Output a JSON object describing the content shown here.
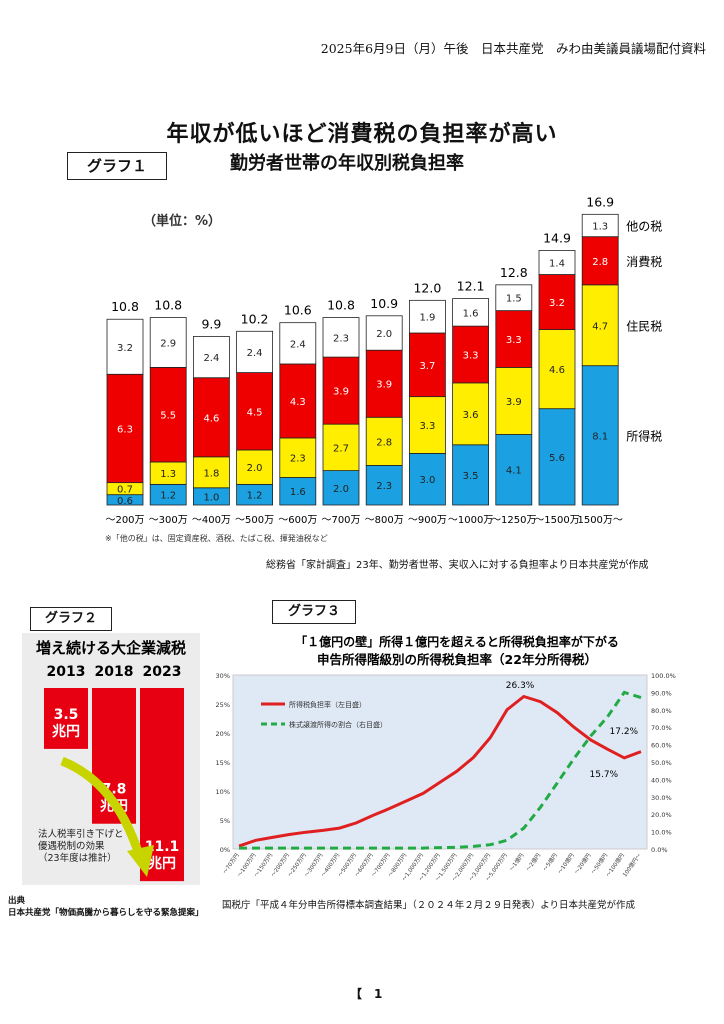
{
  "header": {
    "line": "2025年6月9日（月）午後　日本共産党　みわ由美議員議場配付資料"
  },
  "main_title": "年収が低いほど消費税の負担率が高い",
  "graph1": {
    "tag": "グラフ１",
    "title": "勤労者世帯の年収別税負担率",
    "unit": "（単位：%）",
    "footnote": "※「他の税」は、固定資産税、酒税、たばこ税、揮発油税など",
    "source": "総務省「家計調査」23年、勤労者世帯、実収入に対する負担率より日本共産党が作成"
  },
  "graph2": {
    "tag": "グラフ２",
    "source_label": "出典",
    "source_text": "日本共産党「物価高騰から暮らしを守る緊急提案」"
  },
  "graph3": {
    "tag": "グラフ３",
    "source": "国税庁「平成４年分申告所得標本調査結果」（２０２４年２月２９日発表）より日本共産党が作成"
  },
  "chart_data": [
    {
      "type": "bar",
      "stacked": true,
      "title": "勤労者世帯の年収別税負担率",
      "ylabel": "（単位：%）",
      "categories": [
        "～200万",
        "～300万",
        "～400万",
        "～500万",
        "～600万",
        "～700万",
        "～800万",
        "～900万",
        "～1000万",
        "～1250万",
        "～1500万",
        "1500万～"
      ],
      "totals": [
        "10.8",
        "10.8",
        "9.9",
        "10.2",
        "10.6",
        "10.8",
        "10.9",
        "12.0",
        "12.1",
        "12.8",
        "14.9",
        "16.9"
      ],
      "series": [
        {
          "name": "所得税",
          "color": "#1ba1e2",
          "values": [
            0.6,
            1.2,
            1.0,
            1.2,
            1.6,
            2.0,
            2.3,
            3.0,
            3.5,
            4.1,
            5.6,
            8.1
          ]
        },
        {
          "name": "住民税",
          "color": "#ffee00",
          "values": [
            0.7,
            1.3,
            1.8,
            2.0,
            2.3,
            2.7,
            2.8,
            3.3,
            3.6,
            3.9,
            4.6,
            4.7
          ]
        },
        {
          "name": "消費税",
          "color": "#ee0000",
          "values": [
            6.3,
            5.5,
            4.6,
            4.5,
            4.3,
            3.9,
            3.9,
            3.7,
            3.3,
            3.3,
            3.2,
            2.8
          ]
        },
        {
          "name": "他の税",
          "color": "#ffffff",
          "values": [
            3.2,
            2.9,
            2.4,
            2.4,
            2.4,
            2.3,
            2.0,
            1.9,
            1.6,
            1.5,
            1.4,
            1.3
          ]
        }
      ]
    },
    {
      "type": "bar",
      "title": "増え続ける大企業減税",
      "categories": [
        "2013",
        "2018",
        "2023"
      ],
      "values": [
        3.5,
        7.8,
        11.1
      ],
      "value_labels": [
        "3.5\n兆円",
        "7.8\n兆円",
        "11.1\n兆円"
      ],
      "annotation": "法人税率引き下げと\n優遇税制の効果\n（23年度は推計）"
    },
    {
      "type": "line",
      "title_line1": "「１億円の壁」所得１億円を超えると所得税負担率が下がる",
      "title_line2": "申告所得階級別の所得税負担率（22年分所得税）",
      "x": [
        "～70万円",
        "～100万円",
        "～150万円",
        "～200万円",
        "～250万円",
        "～300万円",
        "～400万円",
        "～500万円",
        "～600万円",
        "～700万円",
        "～800万円",
        "～1,000万円",
        "～1,200万円",
        "～1,500万円",
        "～2,000万円",
        "～3,000万円",
        "～5,000万円",
        "～1億円",
        "～2億円",
        "～5億円",
        "～10億円",
        "～20億円",
        "～50億円",
        "～100億円",
        "100億円～"
      ],
      "yleft": {
        "ticks": [
          "0%",
          "5%",
          "10%",
          "15%",
          "20%",
          "25%",
          "30%"
        ],
        "range": [
          0,
          30
        ]
      },
      "yright": {
        "ticks": [
          "0.0%",
          "10.0%",
          "20.0%",
          "30.0%",
          "40.0%",
          "50.0%",
          "60.0%",
          "70.0%",
          "80.0%",
          "90.0%",
          "100.0%"
        ],
        "range": [
          0,
          100
        ]
      },
      "series": [
        {
          "name": "所得税負担率（左目盛）",
          "axis": "left",
          "color": "#e02020",
          "values": [
            0.5,
            1.5,
            2.0,
            2.5,
            2.9,
            3.2,
            3.6,
            4.5,
            5.8,
            7.0,
            8.3,
            9.6,
            11.5,
            13.4,
            15.8,
            19.2,
            24.0,
            26.3,
            25.4,
            23.5,
            21.0,
            18.8,
            17.2,
            15.7,
            16.8
          ]
        },
        {
          "name": "株式譲渡所得の割合（右目盛）",
          "axis": "right",
          "color": "#22aa44",
          "values": [
            0.5,
            0.5,
            0.5,
            0.5,
            0.5,
            0.5,
            0.5,
            0.5,
            0.5,
            0.5,
            0.5,
            0.5,
            0.8,
            1.0,
            1.5,
            2.5,
            5.0,
            12.0,
            24.0,
            38.0,
            52.0,
            65.0,
            76.0,
            90.0,
            87.0
          ]
        }
      ],
      "annotations": [
        "26.3%",
        "17.2%",
        "15.7%"
      ]
    }
  ],
  "page_number": "【　1"
}
